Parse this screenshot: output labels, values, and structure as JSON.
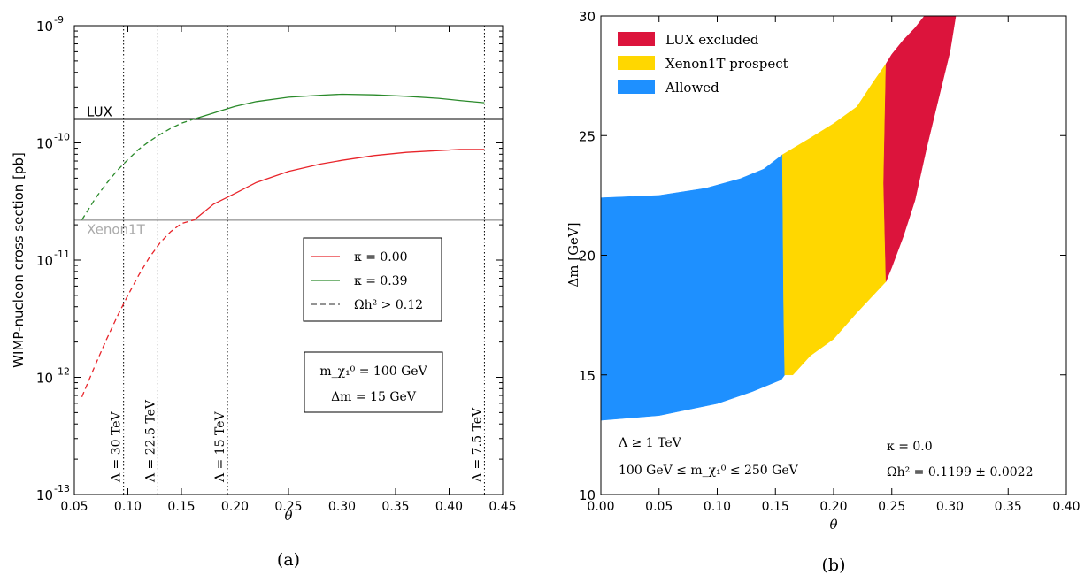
{
  "colors": {
    "red": "#e8242a",
    "green": "#2a8a2a",
    "lux_line": "#000000",
    "xenon_line": "#aaaaaa",
    "lux_excluded": "#dc143c",
    "xenon_prospect": "#ffd700",
    "allowed": "#1e90ff"
  },
  "chart_data": [
    {
      "type": "line",
      "caption": "(a)",
      "ylabel": "WIMP-nucleon cross section [pb]",
      "xlabel": "θ",
      "xlim": [
        0.05,
        0.45
      ],
      "ylim_log10": [
        -13,
        -9
      ],
      "yscale": "log",
      "x_ticks": [
        "0.05",
        "0.10",
        "0.15",
        "0.20",
        "0.25",
        "0.30",
        "0.35",
        "0.40",
        "0.45"
      ],
      "y_tick_bases": [
        "10",
        "10",
        "10",
        "10",
        "10"
      ],
      "y_tick_exponents": [
        "-13",
        "-12",
        "-11",
        "-10",
        "-9"
      ],
      "horizontal_lines": [
        {
          "label": "LUX",
          "value": 1.6e-10,
          "color": "#000000"
        },
        {
          "label": "Xenon1T",
          "value": 2.2e-11,
          "color": "#aaaaaa"
        }
      ],
      "vertical_lines": [
        {
          "x": 0.096,
          "label": "Λ = 30 TeV"
        },
        {
          "x": 0.128,
          "label": "Λ = 22.5 TeV"
        },
        {
          "x": 0.193,
          "label": "Λ = 15 TeV"
        },
        {
          "x": 0.433,
          "label": "Λ = 7.5 TeV"
        }
      ],
      "series": [
        {
          "name": "κ = 0.00",
          "color": "#e8242a",
          "dashed_until_x": 0.162,
          "points": [
            [
              0.057,
              6.8e-13
            ],
            [
              0.07,
              1.3e-12
            ],
            [
              0.08,
              2.1e-12
            ],
            [
              0.09,
              3.3e-12
            ],
            [
              0.1,
              5e-12
            ],
            [
              0.11,
              7.4e-12
            ],
            [
              0.12,
              1.05e-11
            ],
            [
              0.13,
              1.4e-11
            ],
            [
              0.14,
              1.75e-11
            ],
            [
              0.15,
              2.05e-11
            ],
            [
              0.162,
              2.2e-11
            ],
            [
              0.18,
              3e-11
            ],
            [
              0.2,
              3.7e-11
            ],
            [
              0.22,
              4.6e-11
            ],
            [
              0.25,
              5.7e-11
            ],
            [
              0.28,
              6.6e-11
            ],
            [
              0.3,
              7.1e-11
            ],
            [
              0.33,
              7.8e-11
            ],
            [
              0.36,
              8.3e-11
            ],
            [
              0.39,
              8.6e-11
            ],
            [
              0.41,
              8.8e-11
            ],
            [
              0.433,
              8.8e-11
            ]
          ]
        },
        {
          "name": "κ = 0.39",
          "color": "#2a8a2a",
          "dashed_until_x": 0.162,
          "points": [
            [
              0.057,
              2.2e-11
            ],
            [
              0.07,
              3.4e-11
            ],
            [
              0.08,
              4.5e-11
            ],
            [
              0.09,
              5.8e-11
            ],
            [
              0.1,
              7.2e-11
            ],
            [
              0.11,
              8.8e-11
            ],
            [
              0.12,
              1.03e-10
            ],
            [
              0.13,
              1.18e-10
            ],
            [
              0.14,
              1.33e-10
            ],
            [
              0.15,
              1.47e-10
            ],
            [
              0.162,
              1.6e-10
            ],
            [
              0.18,
              1.8e-10
            ],
            [
              0.2,
              2.05e-10
            ],
            [
              0.22,
              2.25e-10
            ],
            [
              0.25,
              2.45e-10
            ],
            [
              0.28,
              2.55e-10
            ],
            [
              0.3,
              2.6e-10
            ],
            [
              0.33,
              2.57e-10
            ],
            [
              0.36,
              2.5e-10
            ],
            [
              0.39,
              2.4e-10
            ],
            [
              0.41,
              2.3e-10
            ],
            [
              0.433,
              2.2e-10
            ]
          ]
        }
      ],
      "legend": [
        {
          "label": "κ = 0.00",
          "style": "solid",
          "color": "#e8242a"
        },
        {
          "label": "κ = 0.39",
          "style": "solid",
          "color": "#2a8a2a"
        },
        {
          "label": "Ωh² > 0.12",
          "style": "dashed",
          "color": "#555555"
        }
      ],
      "info_box": [
        "m_χ₁⁰ = 100 GeV",
        "Δm = 15 GeV"
      ]
    },
    {
      "type": "area",
      "caption": "(b)",
      "ylabel": "Δm [GeV]",
      "xlabel": "θ",
      "xlim": [
        0.0,
        0.4
      ],
      "ylim": [
        10,
        30
      ],
      "x_ticks": [
        "0.00",
        "0.05",
        "0.10",
        "0.15",
        "0.20",
        "0.25",
        "0.30",
        "0.35",
        "0.40"
      ],
      "y_ticks": [
        "10",
        "15",
        "20",
        "25",
        "30"
      ],
      "legend": [
        {
          "label": "LUX excluded",
          "color": "#dc143c"
        },
        {
          "label": "Xenon1T prospect",
          "color": "#ffd700"
        },
        {
          "label": "Allowed",
          "color": "#1e90ff"
        }
      ],
      "regions": [
        {
          "name": "Allowed",
          "color": "#1e90ff",
          "polygon": [
            [
              0.0,
              13.1
            ],
            [
              0.05,
              13.3
            ],
            [
              0.1,
              13.8
            ],
            [
              0.13,
              14.3
            ],
            [
              0.155,
              14.8
            ],
            [
              0.158,
              15.0
            ],
            [
              0.157,
              18.0
            ],
            [
              0.156,
              24.2
            ],
            [
              0.14,
              23.6
            ],
            [
              0.12,
              23.2
            ],
            [
              0.09,
              22.8
            ],
            [
              0.05,
              22.5
            ],
            [
              0.0,
              22.4
            ]
          ]
        },
        {
          "name": "Xenon1T prospect",
          "color": "#ffd700",
          "polygon": [
            [
              0.158,
              15.0
            ],
            [
              0.165,
              15.0
            ],
            [
              0.18,
              15.8
            ],
            [
              0.2,
              16.5
            ],
            [
              0.22,
              17.6
            ],
            [
              0.245,
              18.9
            ],
            [
              0.243,
              23.0
            ],
            [
              0.245,
              28.0
            ],
            [
              0.235,
              27.3
            ],
            [
              0.22,
              26.2
            ],
            [
              0.2,
              25.5
            ],
            [
              0.18,
              24.9
            ],
            [
              0.156,
              24.2
            ],
            [
              0.157,
              18.0
            ]
          ]
        },
        {
          "name": "LUX excluded",
          "color": "#dc143c",
          "polygon": [
            [
              0.245,
              18.9
            ],
            [
              0.25,
              19.5
            ],
            [
              0.26,
              20.8
            ],
            [
              0.27,
              22.3
            ],
            [
              0.28,
              24.5
            ],
            [
              0.29,
              26.5
            ],
            [
              0.3,
              28.5
            ],
            [
              0.305,
              30.0
            ],
            [
              0.278,
              30.0
            ],
            [
              0.27,
              29.5
            ],
            [
              0.26,
              29.0
            ],
            [
              0.25,
              28.4
            ],
            [
              0.245,
              28.0
            ],
            [
              0.243,
              23.0
            ]
          ]
        }
      ],
      "annotations_left": [
        "Λ ≥ 1 TeV",
        "100 GeV ≤ m_χ₁⁰ ≤ 250 GeV"
      ],
      "annotations_right": [
        "κ = 0.0",
        "Ωh² = 0.1199 ± 0.0022"
      ]
    }
  ]
}
